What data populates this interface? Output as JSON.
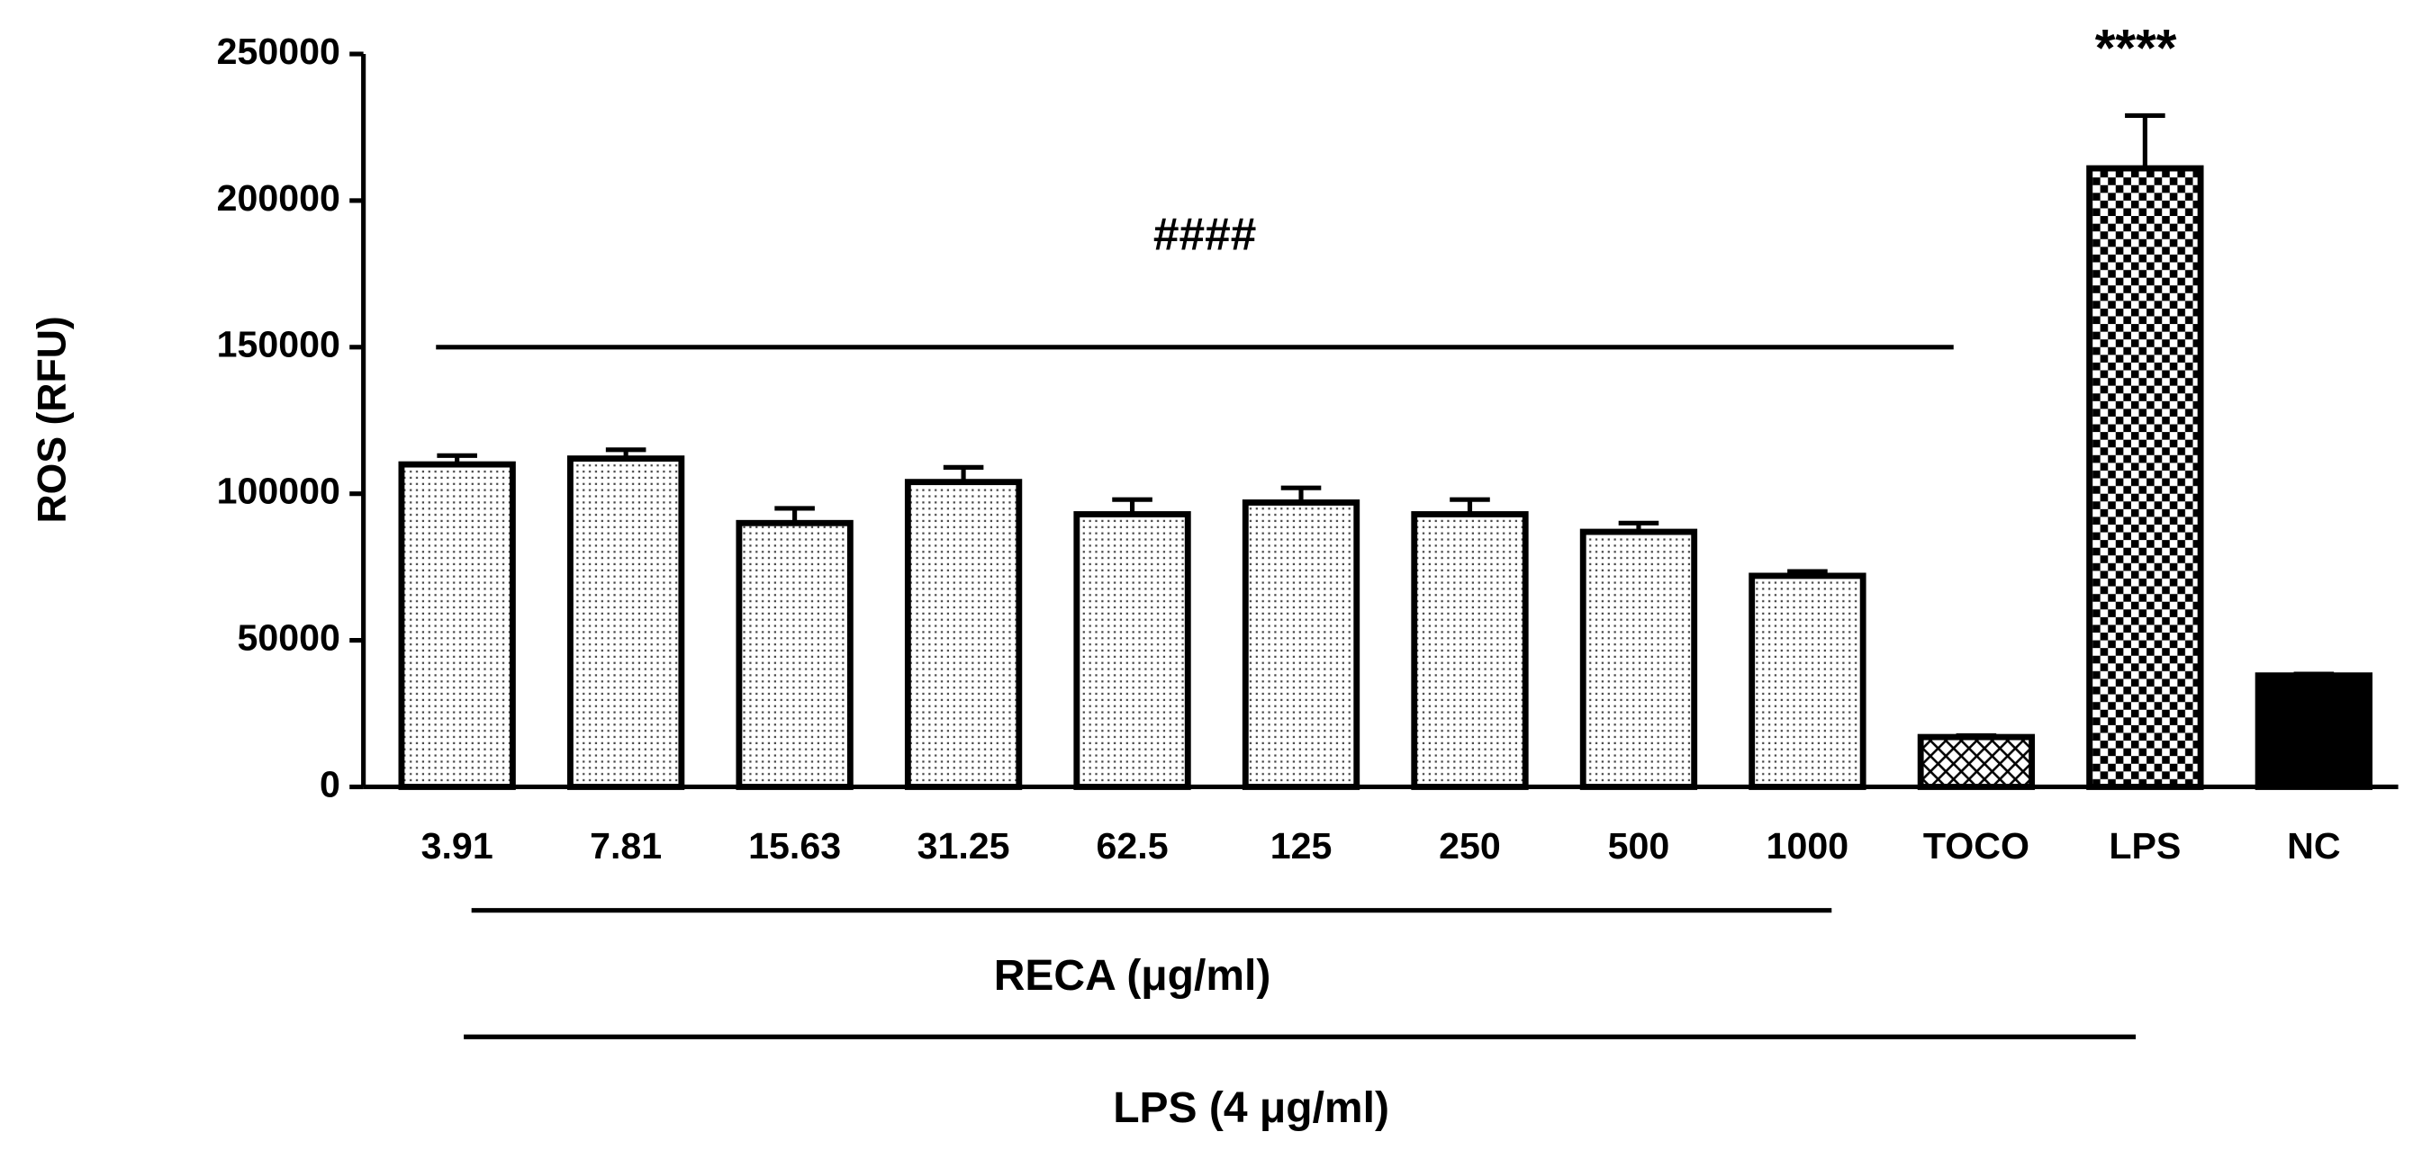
{
  "chart_data": {
    "type": "bar",
    "y_label": "ROS (RFU)",
    "categories": [
      "3.91",
      "7.81",
      "15.63",
      "31.25",
      "62.5",
      "125",
      "250",
      "500",
      "1000",
      "TOCO",
      "LPS",
      "NC"
    ],
    "values": [
      110000,
      112000,
      90000,
      104000,
      93000,
      97000,
      93000,
      87000,
      72000,
      17000,
      211000,
      38000
    ],
    "errors": [
      3000,
      3000,
      5000,
      5000,
      5000,
      5000,
      5000,
      3000,
      1500,
      500,
      18000,
      500
    ],
    "patterns": [
      "dots",
      "dots",
      "dots",
      "dots",
      "dots",
      "dots",
      "dots",
      "dots",
      "dots",
      "crosshatch",
      "checker",
      "solid"
    ],
    "color": "#000000",
    "ylim": [
      0,
      250000
    ],
    "yticks": [
      0,
      50000,
      100000,
      150000,
      200000,
      250000
    ],
    "annotations": [
      "####",
      "****"
    ],
    "group_labels": [
      "RECA (μg/ml)",
      "LPS (4 μg/ml)"
    ]
  }
}
